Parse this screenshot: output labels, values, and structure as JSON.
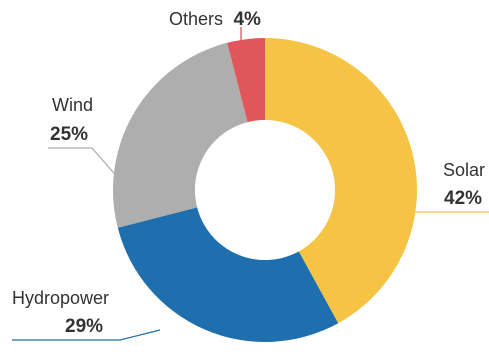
{
  "chart_data": {
    "type": "pie",
    "style": "donut",
    "legend": "none",
    "slices": [
      {
        "label": "Solar",
        "value": 42,
        "display": "42%",
        "color": "#F6C445"
      },
      {
        "label": "Hydropower",
        "value": 29,
        "display": "29%",
        "color": "#1F6FAE"
      },
      {
        "label": "Wind",
        "value": 25,
        "display": "25%",
        "color": "#AEAEAE"
      },
      {
        "label": "Others",
        "value": 4,
        "display": "4%",
        "color": "#E0565A"
      }
    ]
  }
}
